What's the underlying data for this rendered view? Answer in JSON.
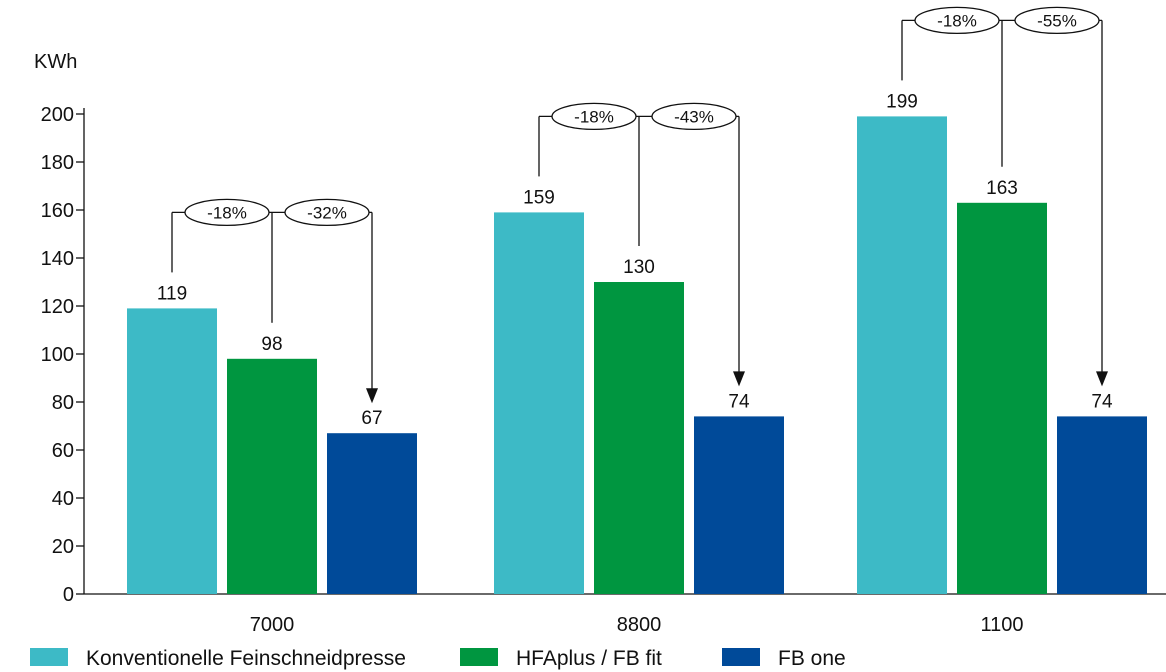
{
  "chart_data": {
    "type": "bar",
    "title": "",
    "xlabel": "",
    "ylabel": "KWh",
    "ylim": [
      0,
      200
    ],
    "yticks": [
      0,
      20,
      40,
      60,
      80,
      100,
      120,
      140,
      160,
      180,
      200
    ],
    "categories": [
      "7000",
      "8800",
      "1100"
    ],
    "series": [
      {
        "name": "Konventionelle Feinschneidpresse",
        "color": "#3dbac6",
        "values": [
          119,
          159,
          199
        ]
      },
      {
        "name": "HFAplus / FB fit",
        "color": "#009640",
        "values": [
          98,
          130,
          163
        ]
      },
      {
        "name": "FB one",
        "color": "#004a99",
        "values": [
          67,
          74,
          74
        ]
      }
    ],
    "annotations": [
      {
        "category": "7000",
        "from_series_to_hfa": "-18%",
        "from_series_to_fbone": "-32%"
      },
      {
        "category": "8800",
        "from_series_to_hfa": "-18%",
        "from_series_to_fbone": "-43%"
      },
      {
        "category": "1100",
        "from_series_to_hfa": "-18%",
        "from_series_to_fbone": "-55%"
      }
    ],
    "grid": false,
    "legend_position": "bottom-left"
  }
}
